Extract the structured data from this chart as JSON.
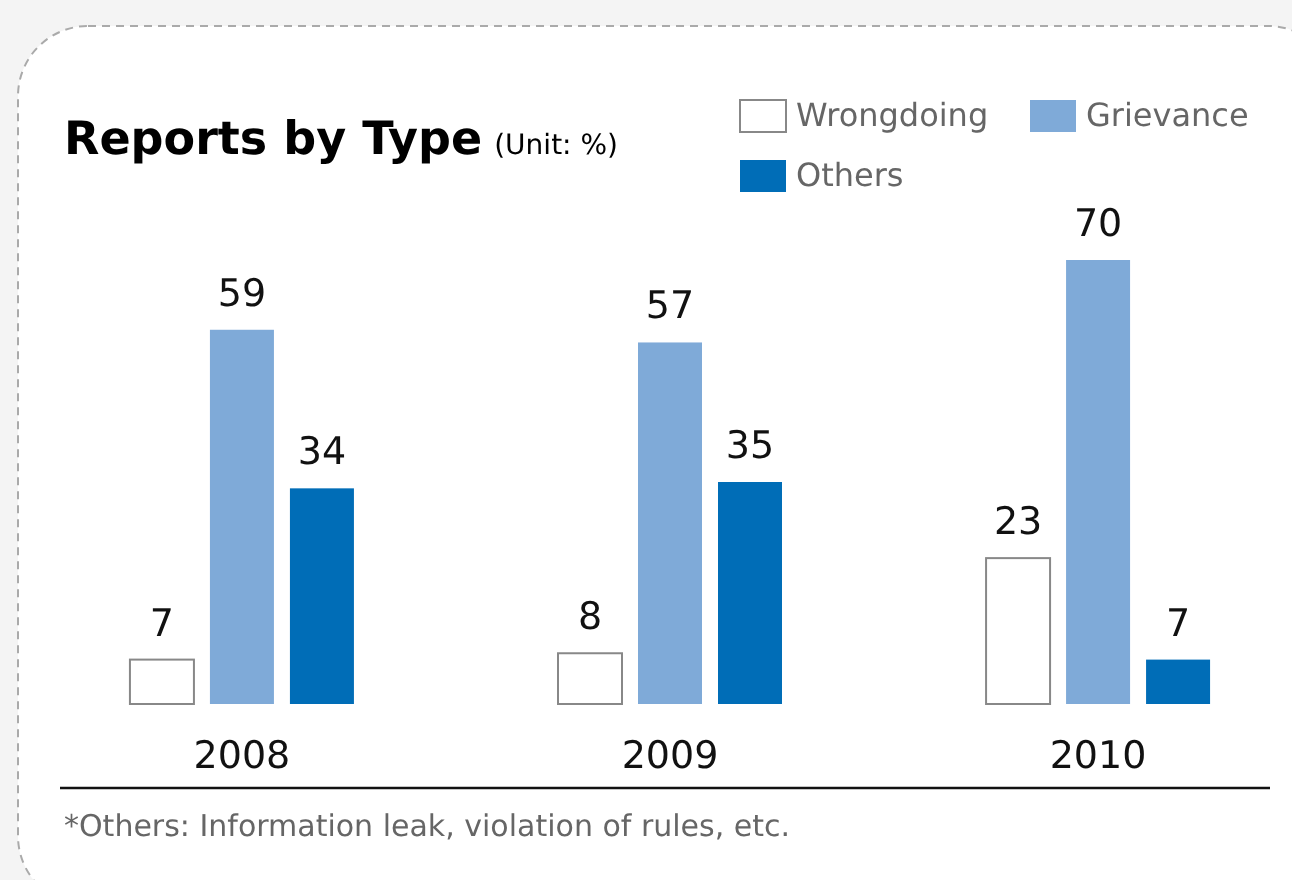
{
  "chart_data": {
    "type": "bar",
    "title": "Reports by Type",
    "subtitle": "(Unit: %)",
    "categories": [
      "2008",
      "2009",
      "2010"
    ],
    "series": [
      {
        "name": "Wrongdoing",
        "color": "#ffffff",
        "values": [
          7,
          8,
          23
        ]
      },
      {
        "name": "Grievance",
        "color": "#7faad8",
        "values": [
          59,
          57,
          70
        ]
      },
      {
        "name": "Others",
        "color": "#006db7",
        "values": [
          34,
          35,
          7
        ]
      }
    ],
    "data_labels": true,
    "legend": "top right",
    "annotations": [
      "*Others: Information leak, violation of rules, etc."
    ]
  }
}
